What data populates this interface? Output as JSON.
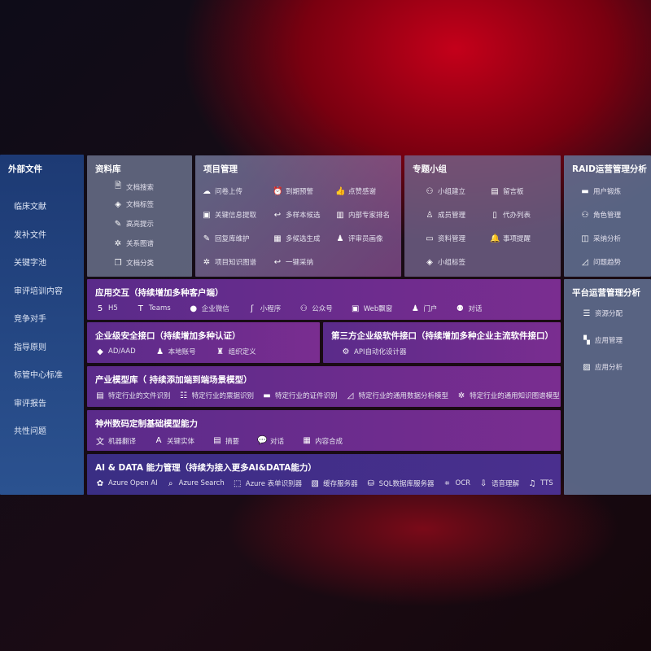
{
  "external": {
    "title": "外部文件",
    "items": [
      "临床文献",
      "发补文件",
      "关键字池",
      "审评培训内容",
      "竞争对手",
      "指导原则",
      "标管中心标准",
      "审评报告",
      "共性问题"
    ]
  },
  "library": {
    "title": "资料库",
    "items": [
      {
        "icon": "document-search-icon",
        "label": "文档搜索"
      },
      {
        "icon": "tag-icon",
        "label": "文档标签"
      },
      {
        "icon": "pen-icon",
        "label": "高亮提示"
      },
      {
        "icon": "graph-icon",
        "label": "关系图谱"
      },
      {
        "icon": "document-copy-icon",
        "label": "文档分类"
      }
    ]
  },
  "project": {
    "title": "项目管理",
    "items": [
      {
        "icon": "cloud-upload-icon",
        "label": "问卷上传"
      },
      {
        "icon": "alarm-icon",
        "label": "到期预警"
      },
      {
        "icon": "thumbs-up-icon",
        "label": "点赞感谢"
      },
      {
        "icon": "window-icon",
        "label": "关键信息提取"
      },
      {
        "icon": "reply-icon",
        "label": "多样本候选"
      },
      {
        "icon": "ranking-icon",
        "label": "内部专家排名"
      },
      {
        "icon": "pen-icon",
        "label": "回复库维护"
      },
      {
        "icon": "puzzle-icon",
        "label": "多候选生成"
      },
      {
        "icon": "user-icon",
        "label": "评审员画像"
      },
      {
        "icon": "graph-icon",
        "label": "项目知识图谱"
      },
      {
        "icon": "reply-icon",
        "label": "一键采纳"
      }
    ]
  },
  "group": {
    "title": "专题小组",
    "items": [
      {
        "icon": "users-icon",
        "label": "小组建立"
      },
      {
        "icon": "bbs-icon",
        "label": "留言板"
      },
      {
        "icon": "user-add-icon",
        "label": "成员管理"
      },
      {
        "icon": "clipboard-icon",
        "label": "代办列表"
      },
      {
        "icon": "folder-icon",
        "label": "资料管理"
      },
      {
        "icon": "bell-icon",
        "label": "事项提醒"
      },
      {
        "icon": "tag-icon",
        "label": "小组标签"
      }
    ]
  },
  "raid": {
    "title": "RAID运营管理分析",
    "items": [
      {
        "icon": "id-card-icon",
        "label": "用户锻炼"
      },
      {
        "icon": "users-icon",
        "label": "角色管理"
      },
      {
        "icon": "qa-icon",
        "label": "采纳分析"
      },
      {
        "icon": "chart-icon",
        "label": "问题趋势"
      }
    ]
  },
  "platform": {
    "title": "平台运营管理分析",
    "items": [
      {
        "icon": "list-icon",
        "label": "资源分配"
      },
      {
        "icon": "apps-icon",
        "label": "应用管理"
      },
      {
        "icon": "analysis-icon",
        "label": "应用分析"
      }
    ]
  },
  "app": {
    "title": "应用交互（持续增加多种客户端）",
    "items": [
      {
        "icon": "html5-icon",
        "label": "H5"
      },
      {
        "icon": "teams-icon",
        "label": "Teams"
      },
      {
        "icon": "wechat-icon",
        "label": "企业微信"
      },
      {
        "icon": "miniprogram-icon",
        "label": "小程序"
      },
      {
        "icon": "users-icon",
        "label": "公众号"
      },
      {
        "icon": "window-icon",
        "label": "Web飘窗"
      },
      {
        "icon": "user-icon",
        "label": "门户"
      },
      {
        "icon": "chat-users-icon",
        "label": "对话"
      }
    ]
  },
  "security": {
    "title": "企业级安全接口（持续增加多种认证）",
    "items": [
      {
        "icon": "diamond-icon",
        "label": "AD/AAD"
      },
      {
        "icon": "user-icon",
        "label": "本地账号"
      },
      {
        "icon": "org-icon",
        "label": "组织定义"
      }
    ]
  },
  "thirdparty": {
    "title": "第三方企业级软件接口（持续增加多种企业主流软件接口）",
    "items": [
      {
        "icon": "gear-icon",
        "label": "API自动化设计器"
      }
    ]
  },
  "industry": {
    "title": "产业模型库（ 持续添加端到端场景模型）",
    "items": [
      {
        "icon": "document-icon",
        "label": "特定行业的文件识别"
      },
      {
        "icon": "receipt-icon",
        "label": "特定行业的票据识别"
      },
      {
        "icon": "id-card-icon",
        "label": "特定行业的证件识别"
      },
      {
        "icon": "chart-icon",
        "label": "特定行业的通用数据分析模型"
      },
      {
        "icon": "graph-icon",
        "label": "特定行业的通用知识图谱模型"
      }
    ]
  },
  "base": {
    "title": "神州数码定制基础模型能力",
    "items": [
      {
        "icon": "translate-icon",
        "label": "机器翻译"
      },
      {
        "icon": "shield-icon",
        "label": "关键实体"
      },
      {
        "icon": "document-icon",
        "label": "摘要"
      },
      {
        "icon": "chat-icon",
        "label": "对话"
      },
      {
        "icon": "puzzle-icon",
        "label": "内容合成"
      }
    ]
  },
  "ai": {
    "title": "AI & DATA 能力管理（持续为接入更多AI&DATA能力）",
    "items": [
      {
        "icon": "openai-icon",
        "label": "Azure Open AI"
      },
      {
        "icon": "search-icon",
        "label": "Azure Search"
      },
      {
        "icon": "form-icon",
        "label": "Azure 表单识别器"
      },
      {
        "icon": "cache-icon",
        "label": "缓存服务器"
      },
      {
        "icon": "database-icon",
        "label": "SQL数据库服务器"
      },
      {
        "icon": "ocr-icon",
        "label": "OCR"
      },
      {
        "icon": "microphone-icon",
        "label": "语音理解"
      },
      {
        "icon": "tts-icon",
        "label": "TTS"
      }
    ]
  }
}
